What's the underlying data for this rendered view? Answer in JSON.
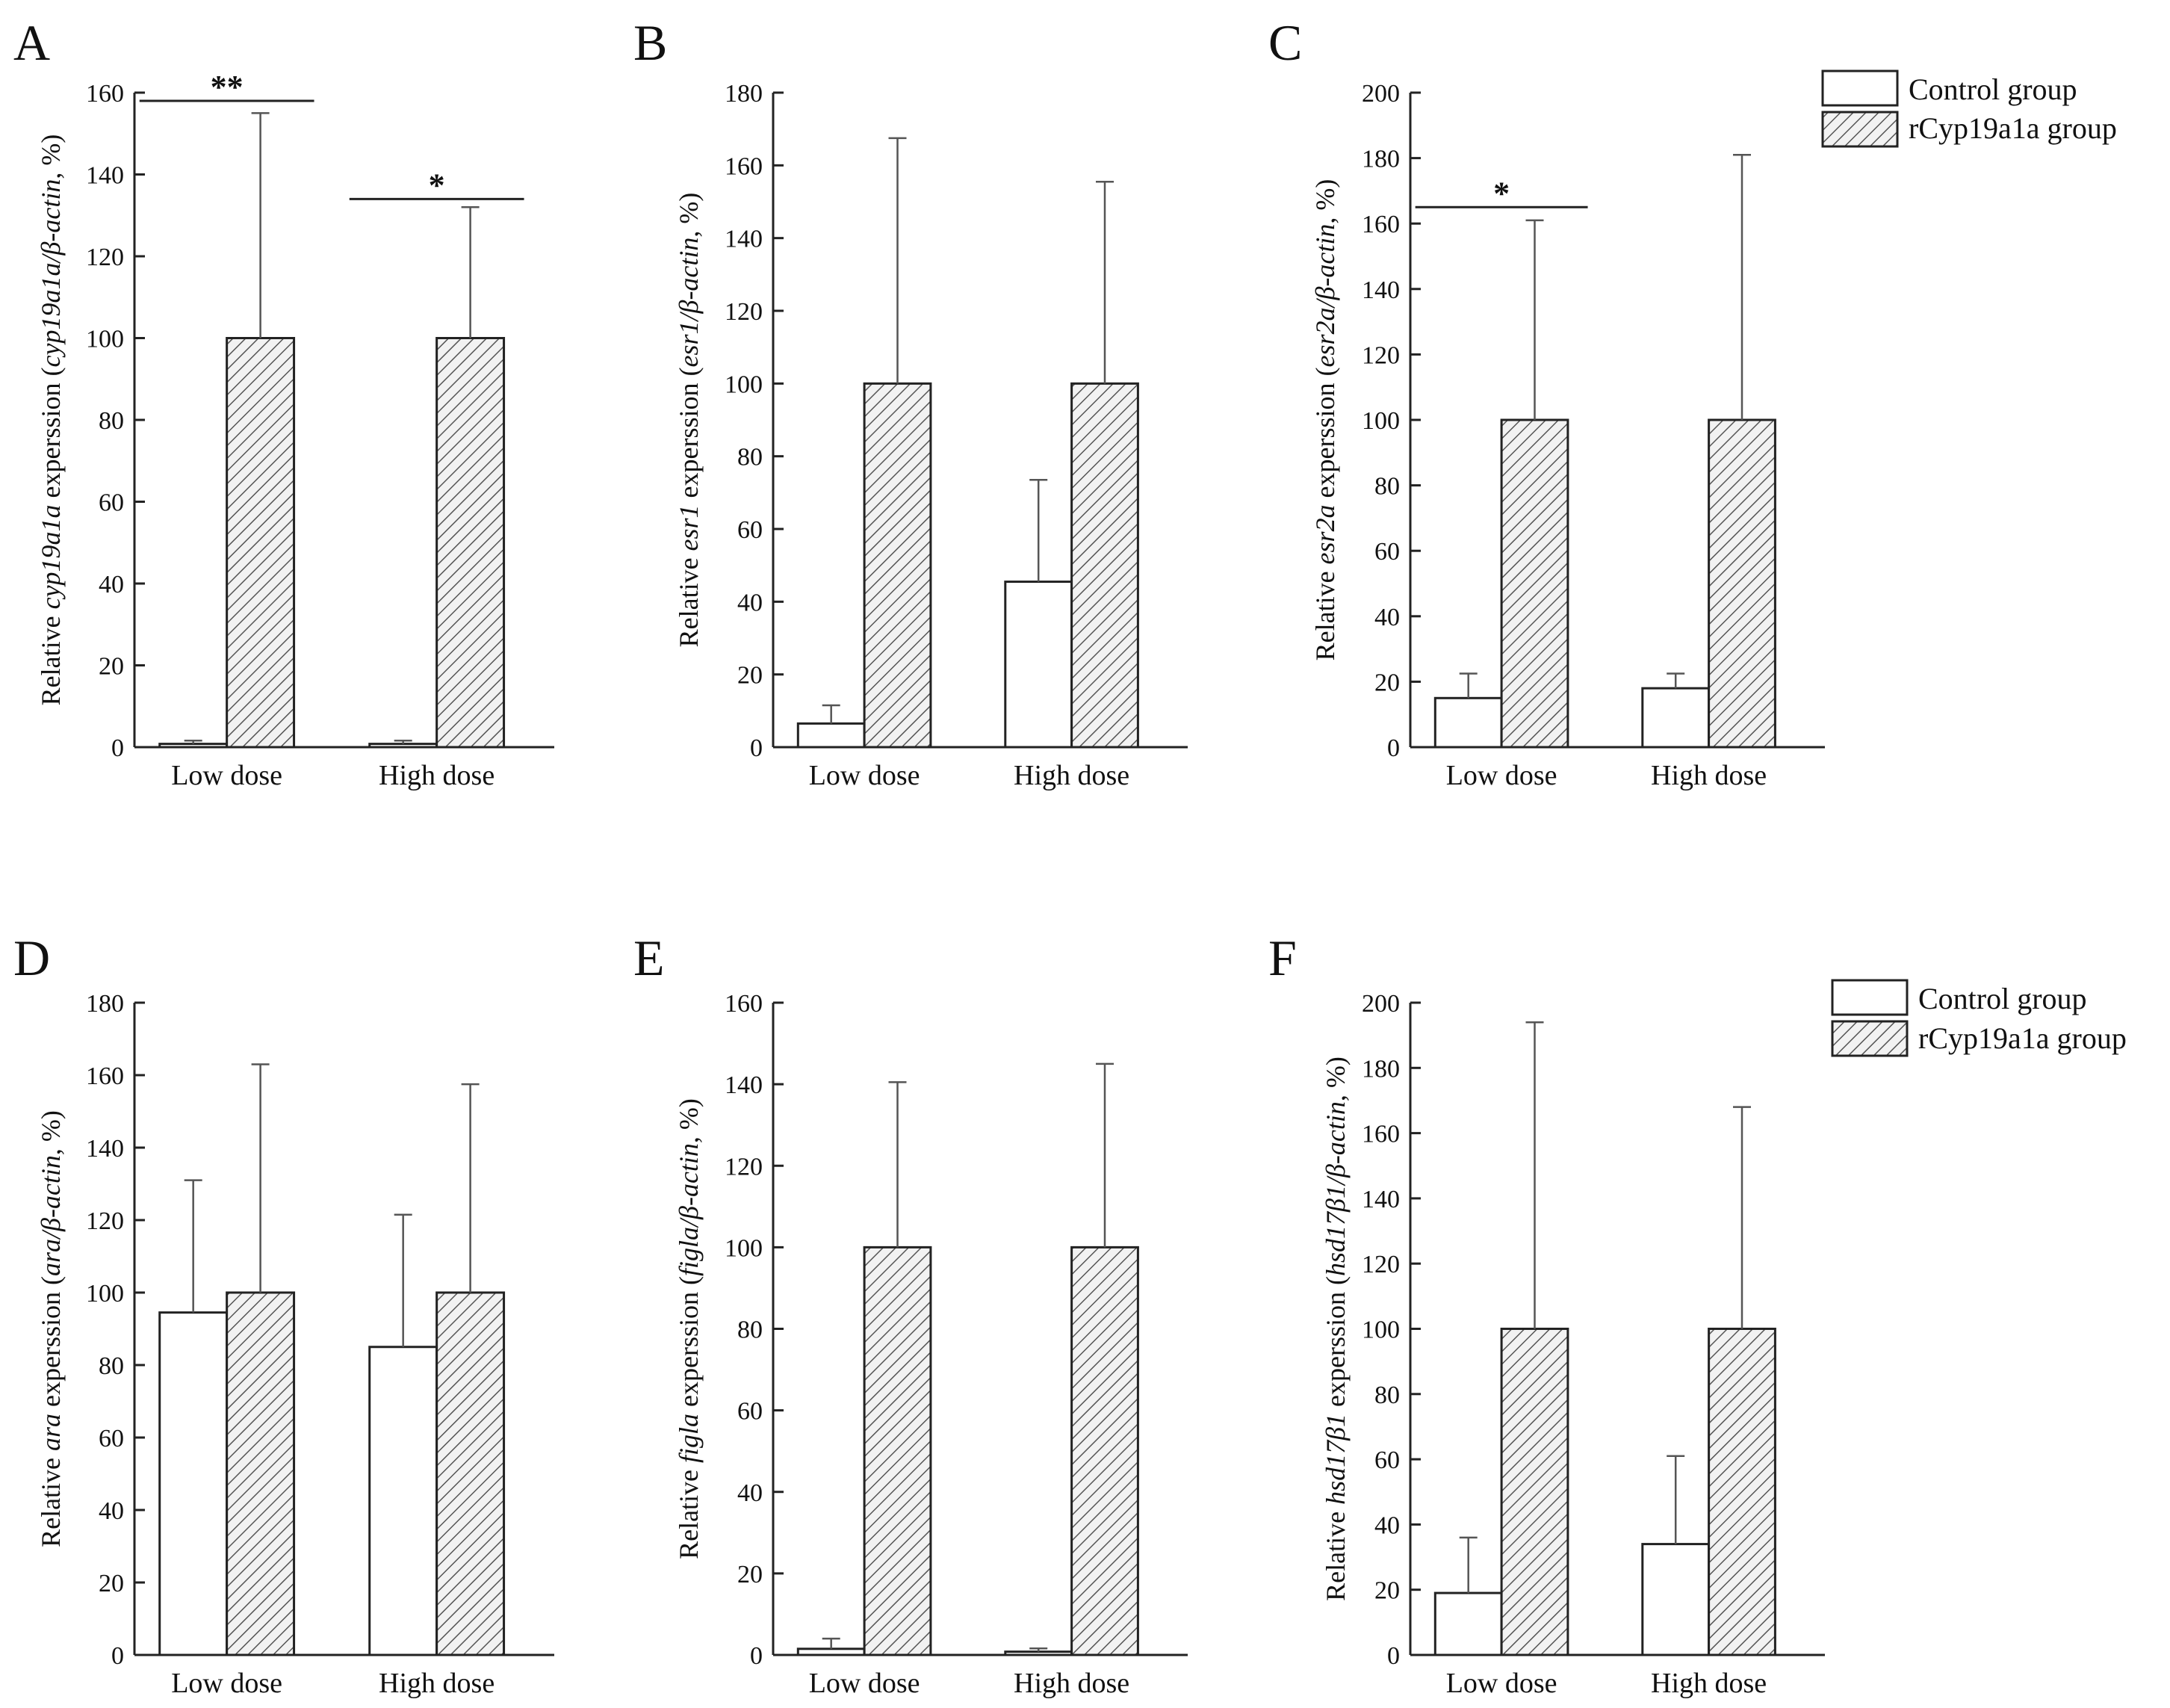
{
  "figure": {
    "legend_top": {
      "control": "Control group",
      "treated": "rCyp19a1a group"
    },
    "legend_bottom": {
      "control": "Control group",
      "treated": "rCyp19a1a group"
    }
  },
  "colors": {
    "axis": "#222222",
    "control_fill": "#ffffff",
    "hatch": "#555555",
    "hatch_bg": "#f2f2f2"
  },
  "chart_data": [
    {
      "panel": "A",
      "type": "bar",
      "categories": [
        "Low dose",
        "High dose"
      ],
      "ylim": [
        0,
        160
      ],
      "ticks": [
        0,
        20,
        40,
        60,
        80,
        100,
        120,
        140,
        160
      ],
      "ylabel": {
        "pre": "Relative ",
        "gene": "cyp19a1a",
        "mid": " experssion (",
        "norm": "cyp19a1a/β-actin",
        "post": ", %)"
      },
      "series": [
        {
          "name": "Control group",
          "values": [
            0.8,
            0.8
          ],
          "errors": [
            0.8,
            0.8
          ]
        },
        {
          "name": "rCyp19a1a group",
          "values": [
            100,
            100
          ],
          "errors": [
            55,
            32
          ]
        }
      ],
      "significance": [
        {
          "category": 0,
          "label": "**",
          "y": 158
        },
        {
          "category": 1,
          "label": "*",
          "y": 134
        }
      ]
    },
    {
      "panel": "B",
      "type": "bar",
      "categories": [
        "Low dose",
        "High dose"
      ],
      "ylim": [
        0,
        180
      ],
      "ticks": [
        0,
        20,
        40,
        60,
        80,
        100,
        120,
        140,
        160,
        180
      ],
      "ylabel": {
        "pre": "Relative ",
        "gene": "esr1",
        "mid": " experssion (",
        "norm": "esr1/β-actin",
        "post": ", %)"
      },
      "series": [
        {
          "name": "Control group",
          "values": [
            6.5,
            45.5
          ],
          "errors": [
            5,
            28
          ]
        },
        {
          "name": "rCyp19a1a group",
          "values": [
            100,
            100
          ],
          "errors": [
            67.5,
            55.5
          ]
        }
      ],
      "significance": []
    },
    {
      "panel": "C",
      "type": "bar",
      "categories": [
        "Low dose",
        "High dose"
      ],
      "ylim": [
        0,
        200
      ],
      "ticks": [
        0,
        20,
        40,
        60,
        80,
        100,
        120,
        140,
        160,
        180,
        200
      ],
      "ylabel": {
        "pre": "Relative ",
        "gene": "esr2a",
        "mid": " experssion (",
        "norm": "esr2a/β-actin",
        "post": ", %)"
      },
      "series": [
        {
          "name": "Control group",
          "values": [
            15,
            18
          ],
          "errors": [
            7.5,
            4.5
          ]
        },
        {
          "name": "rCyp19a1a group",
          "values": [
            100,
            100
          ],
          "errors": [
            61,
            81
          ]
        }
      ],
      "significance": [
        {
          "category": 0,
          "label": "*",
          "y": 165
        }
      ]
    },
    {
      "panel": "D",
      "type": "bar",
      "categories": [
        "Low dose",
        "High dose"
      ],
      "ylim": [
        0,
        180
      ],
      "ticks": [
        0,
        20,
        40,
        60,
        80,
        100,
        120,
        140,
        160,
        180
      ],
      "ylabel": {
        "pre": "Relative ",
        "gene": "ara",
        "mid": " experssion (",
        "norm": "ara/β-actin",
        "post": ", %)"
      },
      "series": [
        {
          "name": "Control group",
          "values": [
            94.5,
            85
          ],
          "errors": [
            36.5,
            36.5
          ]
        },
        {
          "name": "rCyp19a1a group",
          "values": [
            100,
            100
          ],
          "errors": [
            63,
            57.5
          ]
        }
      ],
      "significance": []
    },
    {
      "panel": "E",
      "type": "bar",
      "categories": [
        "Low dose",
        "High dose"
      ],
      "ylim": [
        0,
        160
      ],
      "ticks": [
        0,
        20,
        40,
        60,
        80,
        100,
        120,
        140,
        160
      ],
      "ylabel": {
        "pre": "Relative ",
        "gene": "figla",
        "mid": " experssion (",
        "norm": "figla/β-actin",
        "post": ", %)"
      },
      "series": [
        {
          "name": "Control group",
          "values": [
            1.5,
            0.8
          ],
          "errors": [
            2.5,
            0.8
          ]
        },
        {
          "name": "rCyp19a1a group",
          "values": [
            100,
            100
          ],
          "errors": [
            40.5,
            45
          ]
        }
      ],
      "significance": []
    },
    {
      "panel": "F",
      "type": "bar",
      "categories": [
        "Low dose",
        "High dose"
      ],
      "ylim": [
        0,
        200
      ],
      "ticks": [
        0,
        20,
        40,
        60,
        80,
        100,
        120,
        140,
        160,
        180,
        200
      ],
      "ylabel": {
        "pre": "Relative ",
        "gene": "hsd17β1",
        "mid": " experssion (",
        "norm": "hsd17β1/β-actin",
        "post": ", %)"
      },
      "series": [
        {
          "name": "Control group",
          "values": [
            19,
            34
          ],
          "errors": [
            17,
            27
          ]
        },
        {
          "name": "rCyp19a1a group",
          "values": [
            100,
            100
          ],
          "errors": [
            94,
            68
          ]
        }
      ],
      "significance": []
    }
  ]
}
